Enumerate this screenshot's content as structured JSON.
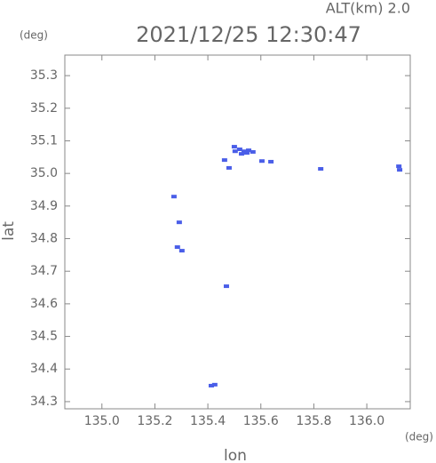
{
  "chart_data": {
    "type": "scatter",
    "title": "2021/12/25 12:30:47",
    "altitude_label": "ALT(km) 2.0",
    "y_unit": "(deg)",
    "x_unit": "(deg)",
    "xlabel": "lon",
    "ylabel": "lat",
    "xlim": [
      134.86,
      136.164
    ],
    "ylim": [
      34.278,
      35.363
    ],
    "xticks": [
      {
        "value": 135.0,
        "label": "135.0"
      },
      135.2,
      135.4,
      135.6,
      135.8,
      {
        "value": 136.0,
        "label": "136.0"
      }
    ],
    "yticks": [
      34.3,
      34.4,
      34.5,
      34.6,
      34.7,
      34.8,
      34.9,
      {
        "value": 35.0,
        "label": "35.0"
      },
      35.1,
      35.2,
      35.3
    ],
    "color": "#4a5ee8",
    "x": [
      135.503,
      135.52,
      135.537,
      135.554,
      135.57,
      135.527,
      135.547,
      135.5,
      135.48,
      135.604,
      135.638,
      135.463,
      135.826,
      136.121,
      136.124,
      135.285,
      135.302,
      135.47,
      135.413,
      135.426,
      135.272,
      135.292
    ],
    "y": [
      35.068,
      35.074,
      35.068,
      35.071,
      35.066,
      35.06,
      35.063,
      35.082,
      35.017,
      35.038,
      35.036,
      35.041,
      35.014,
      35.022,
      35.011,
      34.774,
      34.763,
      34.654,
      34.349,
      34.352,
      34.929,
      34.85
    ]
  }
}
